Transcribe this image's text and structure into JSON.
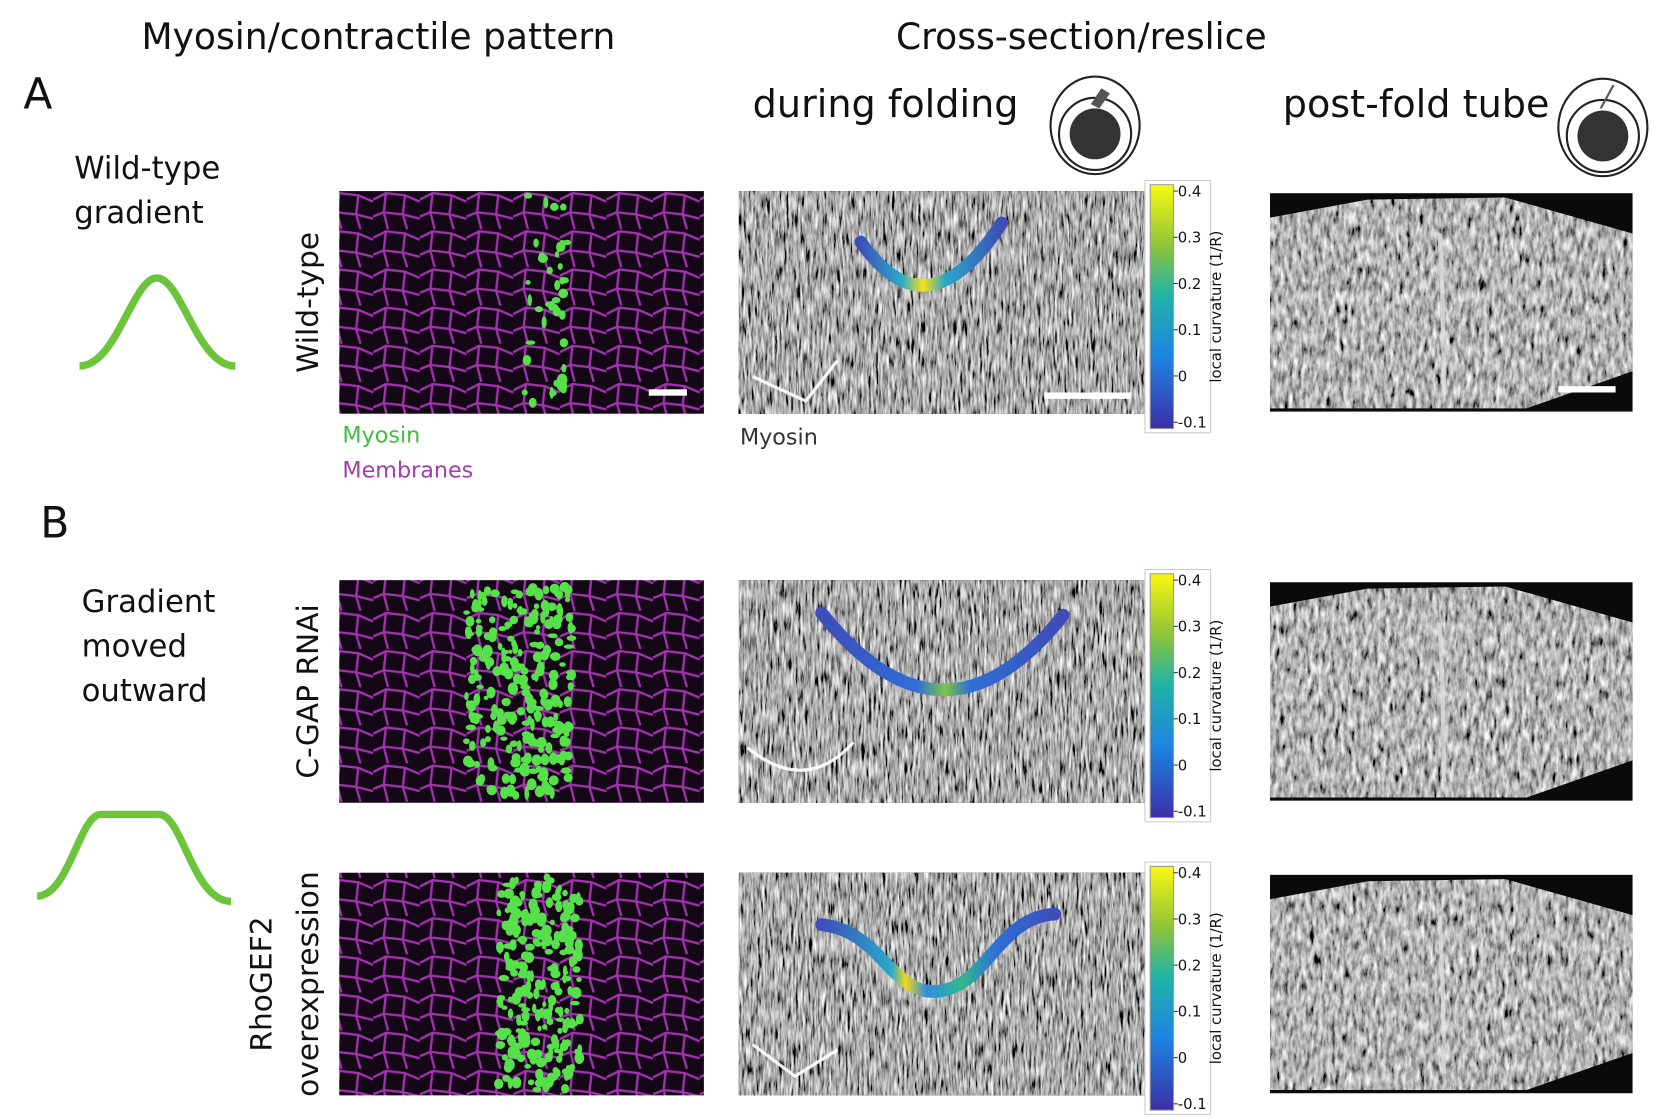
{
  "headers": {
    "left": "Myosin/contractile pattern",
    "right": "Cross-section/reslice",
    "during": "during folding",
    "post": "post-fold tube"
  },
  "panels": [
    {
      "label": "A",
      "gradient_label": [
        "Wild-type",
        "gradient"
      ],
      "rows": [
        {
          "label": [
            "Wild-type"
          ]
        }
      ]
    },
    {
      "label": "B",
      "gradient_label": [
        "Gradient",
        "moved",
        "outward"
      ],
      "rows": [
        {
          "label": [
            "C-GAP RNAi"
          ]
        },
        {
          "label": [
            "RhoGEF2",
            "overexpression"
          ]
        }
      ]
    }
  ],
  "legend": {
    "myosin": "Myosin",
    "membranes": "Membranes",
    "cross_channel": "Myosin"
  },
  "colorbar": {
    "label": "local curvature (1/R)",
    "ticks": [
      0.4,
      0.3,
      0.2,
      0.1,
      0,
      -0.1
    ]
  }
}
